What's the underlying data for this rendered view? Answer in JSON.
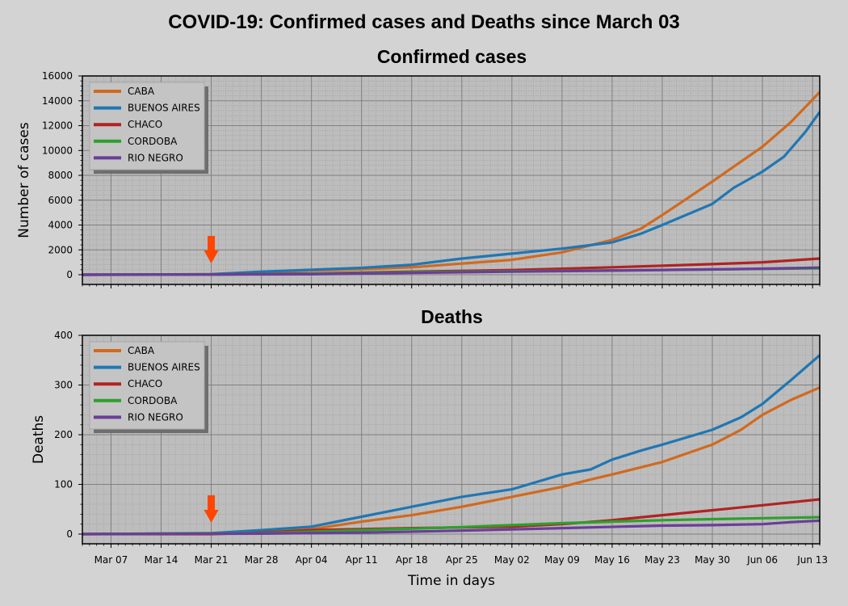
{
  "figure": {
    "title": "COVID-19: Confirmed cases and Deaths since March 03",
    "xlabel": "Time in days",
    "colors": {
      "background": "#d3d3d3",
      "plot_bg": "#bdbdbd",
      "grid_major": "#808080",
      "grid_minor": "#a0a0a0",
      "arrow": "#ff4500"
    }
  },
  "chart_data": [
    {
      "type": "line",
      "title": "Confirmed cases",
      "ylabel": "Number of cases",
      "xlabel": "",
      "x_start": "Mar 03",
      "x_end": "Jun 14",
      "ylim": [
        0,
        16000
      ],
      "yticks": [
        0,
        2000,
        4000,
        6000,
        8000,
        10000,
        12000,
        14000,
        16000
      ],
      "xtick_labels": [
        "Mar 07",
        "Mar 14",
        "Mar 21",
        "Mar 28",
        "Apr 04",
        "Apr 11",
        "Apr 18",
        "Apr 25",
        "May 02",
        "May 09",
        "May 16",
        "May 23",
        "May 30",
        "Jun 06",
        "Jun 13"
      ],
      "grid": true,
      "legend": "top-left",
      "annotation": {
        "type": "arrow",
        "date": "Mar 21"
      },
      "series": [
        {
          "name": "CABA",
          "color": "#d2691e",
          "points": [
            [
              "Mar 03",
              0
            ],
            [
              "Mar 21",
              30
            ],
            [
              "Mar 28",
              200
            ],
            [
              "Apr 04",
              350
            ],
            [
              "Apr 11",
              450
            ],
            [
              "Apr 18",
              600
            ],
            [
              "Apr 25",
              900
            ],
            [
              "May 02",
              1200
            ],
            [
              "May 09",
              1800
            ],
            [
              "May 16",
              2800
            ],
            [
              "May 20",
              3700
            ],
            [
              "May 23",
              4800
            ],
            [
              "May 30",
              7500
            ],
            [
              "Jun 02",
              8700
            ],
            [
              "Jun 06",
              10300
            ],
            [
              "Jun 10",
              12300
            ],
            [
              "Jun 14",
              14700
            ]
          ]
        },
        {
          "name": "BUENOS AIRES",
          "color": "#1f77b4",
          "points": [
            [
              "Mar 03",
              0
            ],
            [
              "Mar 21",
              40
            ],
            [
              "Mar 28",
              250
            ],
            [
              "Apr 04",
              400
            ],
            [
              "Apr 11",
              550
            ],
            [
              "Apr 18",
              800
            ],
            [
              "Apr 25",
              1300
            ],
            [
              "May 02",
              1700
            ],
            [
              "May 09",
              2100
            ],
            [
              "May 16",
              2600
            ],
            [
              "May 20",
              3300
            ],
            [
              "May 23",
              4000
            ],
            [
              "May 30",
              5700
            ],
            [
              "Jun 02",
              7000
            ],
            [
              "Jun 06",
              8300
            ],
            [
              "Jun 09",
              9500
            ],
            [
              "Jun 12",
              11500
            ],
            [
              "Jun 14",
              13100
            ]
          ]
        },
        {
          "name": "CHACO",
          "color": "#b22222",
          "points": [
            [
              "Mar 03",
              0
            ],
            [
              "Mar 21",
              20
            ],
            [
              "Apr 04",
              100
            ],
            [
              "Apr 18",
              250
            ],
            [
              "May 02",
              380
            ],
            [
              "May 16",
              600
            ],
            [
              "May 30",
              850
            ],
            [
              "Jun 06",
              1000
            ],
            [
              "Jun 14",
              1300
            ]
          ]
        },
        {
          "name": "CORDOBA",
          "color": "#2ca02c",
          "points": [
            [
              "Mar 03",
              0
            ],
            [
              "Mar 21",
              15
            ],
            [
              "Apr 04",
              80
            ],
            [
              "Apr 18",
              200
            ],
            [
              "May 02",
              280
            ],
            [
              "May 16",
              350
            ],
            [
              "May 30",
              420
            ],
            [
              "Jun 06",
              470
            ],
            [
              "Jun 14",
              520
            ]
          ]
        },
        {
          "name": "RIO NEGRO",
          "color": "#6a3d9a",
          "points": [
            [
              "Mar 03",
              0
            ],
            [
              "Mar 21",
              10
            ],
            [
              "Apr 04",
              40
            ],
            [
              "Apr 18",
              150
            ],
            [
              "May 02",
              250
            ],
            [
              "May 16",
              330
            ],
            [
              "May 30",
              430
            ],
            [
              "Jun 06",
              490
            ],
            [
              "Jun 14",
              570
            ]
          ]
        }
      ]
    },
    {
      "type": "line",
      "title": "Deaths",
      "ylabel": "Deaths",
      "xlabel": "Time in days",
      "x_start": "Mar 03",
      "x_end": "Jun 14",
      "ylim": [
        0,
        400
      ],
      "yticks": [
        0,
        100,
        200,
        300,
        400
      ],
      "xtick_labels": [
        "Mar 07",
        "Mar 14",
        "Mar 21",
        "Mar 28",
        "Apr 04",
        "Apr 11",
        "Apr 18",
        "Apr 25",
        "May 02",
        "May 09",
        "May 16",
        "May 23",
        "May 30",
        "Jun 06",
        "Jun 13"
      ],
      "grid": true,
      "legend": "top-left",
      "annotation": {
        "type": "arrow",
        "date": "Mar 21"
      },
      "series": [
        {
          "name": "CABA",
          "color": "#d2691e",
          "points": [
            [
              "Mar 03",
              0
            ],
            [
              "Mar 21",
              1
            ],
            [
              "Mar 28",
              5
            ],
            [
              "Apr 04",
              10
            ],
            [
              "Apr 11",
              25
            ],
            [
              "Apr 18",
              38
            ],
            [
              "Apr 25",
              55
            ],
            [
              "May 02",
              75
            ],
            [
              "May 09",
              95
            ],
            [
              "May 13",
              110
            ],
            [
              "May 16",
              120
            ],
            [
              "May 23",
              145
            ],
            [
              "May 30",
              180
            ],
            [
              "Jun 03",
              210
            ],
            [
              "Jun 06",
              240
            ],
            [
              "Jun 10",
              270
            ],
            [
              "Jun 14",
              295
            ]
          ]
        },
        {
          "name": "BUENOS AIRES",
          "color": "#1f77b4",
          "points": [
            [
              "Mar 03",
              0
            ],
            [
              "Mar 21",
              2
            ],
            [
              "Mar 28",
              8
            ],
            [
              "Apr 04",
              15
            ],
            [
              "Apr 11",
              35
            ],
            [
              "Apr 18",
              55
            ],
            [
              "Apr 25",
              75
            ],
            [
              "May 02",
              90
            ],
            [
              "May 09",
              120
            ],
            [
              "May 13",
              130
            ],
            [
              "May 16",
              150
            ],
            [
              "May 20",
              168
            ],
            [
              "May 23",
              180
            ],
            [
              "May 30",
              210
            ],
            [
              "Jun 03",
              235
            ],
            [
              "Jun 06",
              262
            ],
            [
              "Jun 10",
              310
            ],
            [
              "Jun 14",
              360
            ]
          ]
        },
        {
          "name": "CHACO",
          "color": "#b22222",
          "points": [
            [
              "Mar 03",
              0
            ],
            [
              "Mar 21",
              0
            ],
            [
              "Mar 28",
              3
            ],
            [
              "Apr 04",
              8
            ],
            [
              "Apr 18",
              12
            ],
            [
              "May 02",
              15
            ],
            [
              "May 09",
              20
            ],
            [
              "May 16",
              28
            ],
            [
              "May 23",
              38
            ],
            [
              "May 30",
              48
            ],
            [
              "Jun 06",
              58
            ],
            [
              "Jun 14",
              70
            ]
          ]
        },
        {
          "name": "CORDOBA",
          "color": "#2ca02c",
          "points": [
            [
              "Mar 03",
              0
            ],
            [
              "Mar 28",
              2
            ],
            [
              "Apr 11",
              8
            ],
            [
              "Apr 25",
              14
            ],
            [
              "May 02",
              18
            ],
            [
              "May 09",
              22
            ],
            [
              "May 16",
              25
            ],
            [
              "May 23",
              28
            ],
            [
              "May 30",
              30
            ],
            [
              "Jun 06",
              32
            ],
            [
              "Jun 14",
              34
            ]
          ]
        },
        {
          "name": "RIO NEGRO",
          "color": "#6a3d9a",
          "points": [
            [
              "Mar 03",
              0
            ],
            [
              "Mar 28",
              1
            ],
            [
              "Apr 11",
              3
            ],
            [
              "Apr 25",
              7
            ],
            [
              "May 09",
              12
            ],
            [
              "May 23",
              17
            ],
            [
              "May 30",
              18
            ],
            [
              "Jun 06",
              20
            ],
            [
              "Jun 10",
              24
            ],
            [
              "Jun 14",
              27
            ]
          ]
        }
      ]
    }
  ]
}
